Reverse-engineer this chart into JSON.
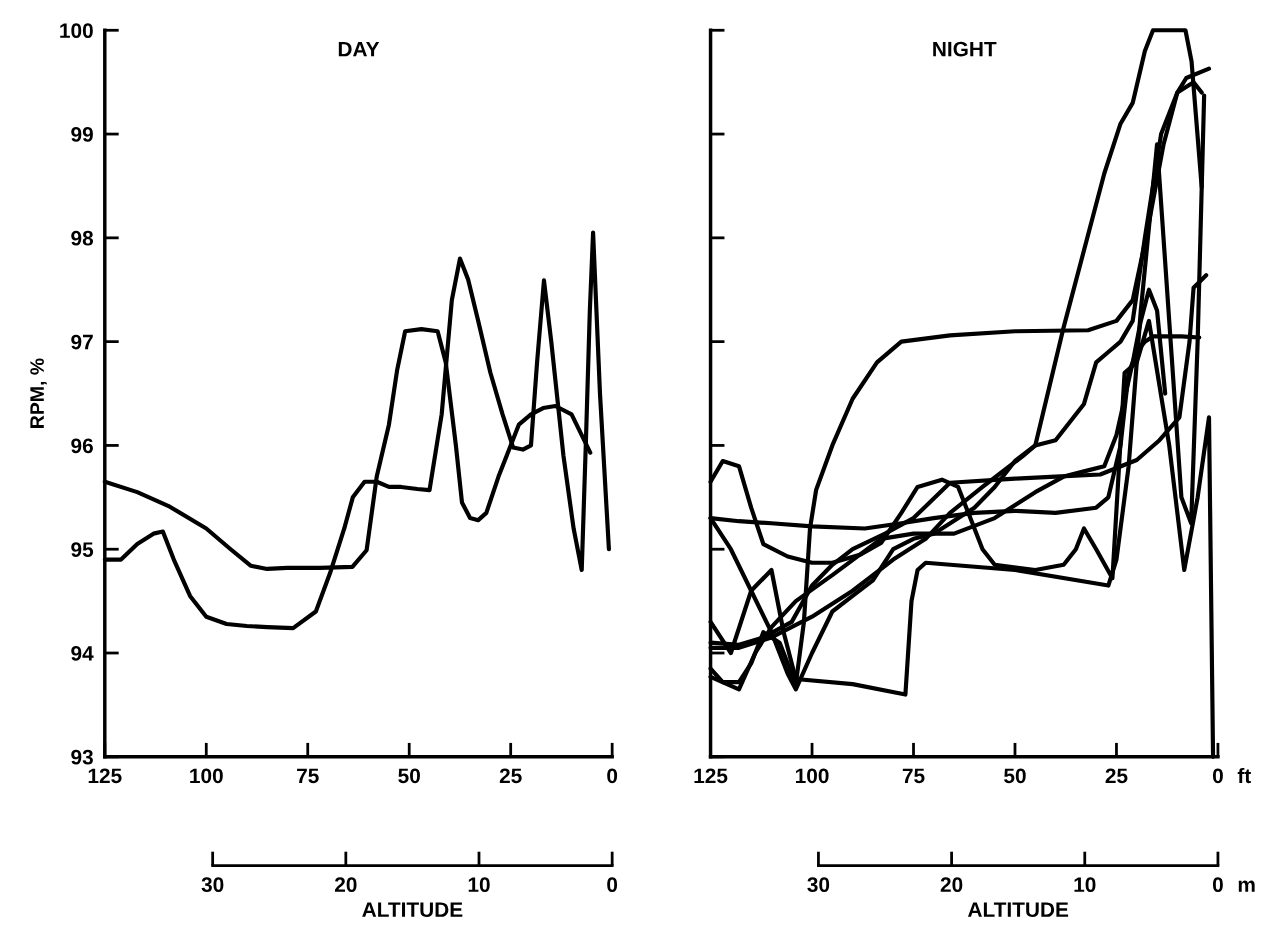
{
  "chart_data": [
    {
      "type": "line",
      "title": "DAY",
      "ylabel": "RPM, %",
      "x2label": "ALTITUDE",
      "xlim": [
        125,
        0
      ],
      "xticks": [
        125,
        100,
        75,
        50,
        25,
        0
      ],
      "ylim": [
        93,
        100
      ],
      "yticks": [
        93,
        94,
        95,
        96,
        97,
        98,
        99,
        100
      ],
      "x2lim": [
        30,
        0
      ],
      "x2ticks": [
        30,
        20,
        10,
        0
      ],
      "grid": false,
      "legend": false,
      "marker": "none",
      "line_style": "solid",
      "series": [
        {
          "color": "#000000",
          "x": [
            125,
            117,
            109,
            100,
            94,
            89,
            85,
            80,
            72,
            64,
            60.5,
            58,
            55,
            53,
            51,
            47,
            43,
            41,
            38.5,
            37,
            35,
            33,
            31,
            28,
            25,
            23,
            20,
            17,
            14,
            10,
            7.5,
            5.4
          ],
          "values": [
            95.65,
            95.55,
            95.41,
            95.2,
            95.0,
            94.84,
            94.81,
            94.82,
            94.82,
            94.83,
            94.99,
            95.7,
            96.2,
            96.72,
            97.1,
            97.12,
            97.1,
            96.8,
            96.0,
            95.45,
            95.3,
            95.28,
            95.35,
            95.7,
            96.0,
            96.2,
            96.3,
            96.36,
            96.38,
            96.3,
            96.1,
            95.93
          ]
        },
        {
          "color": "#000000",
          "x": [
            125,
            121,
            117,
            113,
            110.7,
            108,
            104,
            100,
            95,
            90,
            85,
            78.6,
            73,
            69.5,
            66,
            63.9,
            61,
            58,
            55,
            52,
            48,
            45,
            42,
            39.5,
            37.5,
            35.5,
            33,
            30,
            27,
            24.4,
            22,
            20,
            18.5,
            16.8,
            15,
            12,
            9.5,
            7.5,
            6.5,
            5.5,
            4.7,
            3,
            0.8
          ],
          "values": [
            94.9,
            94.9,
            95.05,
            95.15,
            95.17,
            94.9,
            94.55,
            94.35,
            94.28,
            94.26,
            94.25,
            94.24,
            94.4,
            94.77,
            95.2,
            95.5,
            95.65,
            95.65,
            95.6,
            95.6,
            95.58,
            95.57,
            96.3,
            97.4,
            97.8,
            97.6,
            97.2,
            96.7,
            96.3,
            95.98,
            95.96,
            96.0,
            96.8,
            97.59,
            97.0,
            95.9,
            95.2,
            94.8,
            96.0,
            97.3,
            98.05,
            96.5,
            95.0
          ]
        }
      ]
    },
    {
      "type": "line",
      "title": "NIGHT",
      "x2label": "ALTITUDE",
      "xlim": [
        125,
        0
      ],
      "xticks": [
        125,
        100,
        75,
        50,
        25,
        0
      ],
      "ylim": [
        93,
        100
      ],
      "yticks": [
        93,
        94,
        95,
        96,
        97,
        98,
        99,
        100
      ],
      "x2lim": [
        30,
        0
      ],
      "x2ticks": [
        30,
        20,
        10,
        0
      ],
      "tick_labels": "x",
      "grid": false,
      "legend": false,
      "marker": "none",
      "line_style": "solid",
      "annotations": [
        "ft",
        "m"
      ],
      "series": [
        {
          "color": "#000000",
          "x": [
            125,
            118,
            110,
            100,
            90,
            80,
            72,
            66,
            58,
            54,
            48,
            45,
            38,
            28,
            24,
            21,
            18,
            16,
            8,
            6.5,
            4
          ],
          "values": [
            94.05,
            94.05,
            94.15,
            94.35,
            94.6,
            94.9,
            95.1,
            95.35,
            95.6,
            95.72,
            95.9,
            96.0,
            97.14,
            98.62,
            99.1,
            99.3,
            99.8,
            100,
            100,
            99.7,
            98.49
          ]
        },
        {
          "color": "#000000",
          "x": [
            125,
            122,
            118,
            115,
            112,
            108,
            104,
            102,
            100.5,
            99,
            95,
            90,
            84,
            78,
            66,
            50,
            32,
            25,
            21,
            17.5,
            13.4,
            10,
            7.8,
            2.2
          ],
          "values": [
            93.85,
            93.72,
            93.72,
            93.9,
            94.2,
            94.1,
            93.7,
            94.3,
            95.2,
            95.57,
            96.0,
            96.45,
            96.8,
            97.0,
            97.06,
            97.1,
            97.11,
            97.2,
            97.4,
            98.04,
            98.9,
            99.4,
            99.54,
            99.63
          ]
        },
        {
          "color": "#000000",
          "x": [
            125,
            120,
            115,
            110,
            107,
            104,
            90,
            77,
            75.5,
            74,
            72,
            50,
            27,
            25,
            22,
            19,
            15,
            12,
            9,
            6.6,
            5,
            3.4
          ],
          "values": [
            94.3,
            94.0,
            94.6,
            94.8,
            94.2,
            93.75,
            93.7,
            93.6,
            94.5,
            94.8,
            94.87,
            94.8,
            94.65,
            94.9,
            95.8,
            97.3,
            98.9,
            97.2,
            95.5,
            95.25,
            97.0,
            99.37
          ]
        },
        {
          "color": "#000000",
          "x": [
            125,
            122,
            118,
            115,
            112,
            106,
            100,
            95,
            88,
            83,
            78,
            74,
            68,
            64,
            61,
            58,
            55,
            45,
            38,
            35,
            33,
            30,
            26,
            23,
            20,
            17,
            12,
            8.3,
            5,
            2.2,
            1.2
          ],
          "values": [
            95.65,
            95.85,
            95.8,
            95.4,
            95.05,
            94.93,
            94.87,
            94.87,
            94.95,
            95.06,
            95.35,
            95.6,
            95.67,
            95.6,
            95.3,
            95.0,
            94.85,
            94.8,
            94.85,
            95.0,
            95.2,
            95.0,
            94.72,
            96.7,
            96.8,
            97.2,
            96.0,
            94.8,
            95.5,
            96.27,
            93.0
          ]
        },
        {
          "color": "#000000",
          "x": [
            125,
            118,
            110,
            100,
            87,
            78,
            70,
            60,
            50,
            40,
            30,
            27,
            24,
            22,
            20,
            18,
            16,
            12,
            9,
            4.6
          ],
          "values": [
            95.3,
            95.27,
            95.25,
            95.22,
            95.2,
            95.25,
            95.3,
            95.35,
            95.37,
            95.35,
            95.4,
            95.5,
            96.0,
            96.7,
            96.9,
            97.0,
            97.05,
            97.05,
            97.05,
            97.04
          ]
        },
        {
          "color": "#000000",
          "x": [
            125,
            118,
            112,
            105,
            100,
            95,
            90,
            82,
            75,
            66,
            50,
            40,
            29,
            20,
            14.4,
            9.5,
            7,
            6,
            2.9
          ],
          "values": [
            94.1,
            94.08,
            94.15,
            94.3,
            94.65,
            94.85,
            95.0,
            95.15,
            95.3,
            95.64,
            95.68,
            95.7,
            95.72,
            95.86,
            96.05,
            96.27,
            97.0,
            97.52,
            97.64
          ]
        },
        {
          "color": "#000000",
          "x": [
            125,
            118,
            114,
            110,
            104,
            95,
            83,
            75,
            65,
            55,
            45,
            38,
            33,
            28,
            25,
            21,
            19,
            17,
            15,
            13
          ],
          "values": [
            93.77,
            93.65,
            94.0,
            94.25,
            94.5,
            94.75,
            95.1,
            95.15,
            95.15,
            95.3,
            95.55,
            95.7,
            95.75,
            95.8,
            96.1,
            96.8,
            97.2,
            97.5,
            97.3,
            96.5
          ]
        },
        {
          "color": "#000000",
          "x": [
            125,
            120,
            115,
            110,
            106,
            104,
            100,
            95,
            90,
            85,
            80,
            75,
            70,
            60,
            55,
            50,
            45,
            40,
            33,
            30,
            27,
            24,
            21,
            18,
            14,
            10,
            6,
            4
          ],
          "values": [
            95.3,
            95.0,
            94.6,
            94.2,
            93.8,
            93.65,
            94.0,
            94.4,
            94.55,
            94.7,
            95.0,
            95.1,
            95.15,
            95.4,
            95.6,
            95.85,
            96.0,
            96.05,
            96.4,
            96.8,
            96.9,
            97.0,
            97.2,
            98.0,
            99.0,
            99.4,
            99.5,
            99.4
          ]
        }
      ]
    }
  ]
}
